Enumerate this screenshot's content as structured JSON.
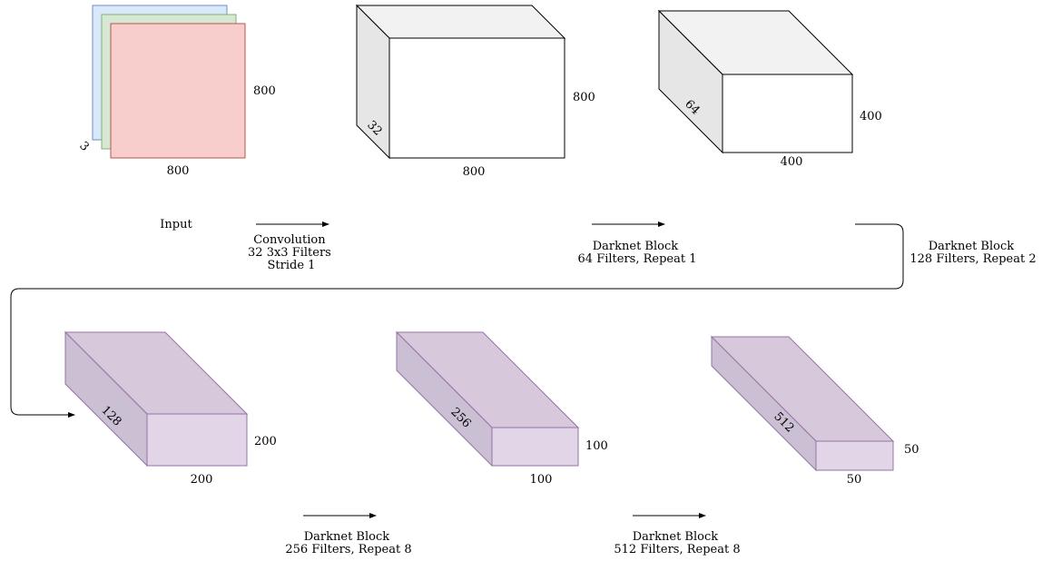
{
  "input": {
    "name": "Input",
    "width": "800",
    "height": "800",
    "channels": "3",
    "colors": {
      "back": "#dae8fc",
      "back_stroke": "#6c8ebf",
      "mid": "#d5e8d4",
      "mid_stroke": "#82b366",
      "front": "#f8cecc",
      "front_stroke": "#b85450"
    }
  },
  "conv1": {
    "width": "800",
    "height": "800",
    "depth": "32"
  },
  "block1": {
    "width": "400",
    "height": "400",
    "depth": "64"
  },
  "block2": {
    "width": "200",
    "height": "200",
    "depth": "128"
  },
  "block3": {
    "width": "100",
    "height": "100",
    "depth": "256"
  },
  "block4": {
    "width": "50",
    "height": "50",
    "depth": "512"
  },
  "transitions": [
    {
      "lines": [
        "Convolution",
        "32 3x3 Filters",
        "Stride 1"
      ]
    },
    {
      "lines": [
        "Darknet Block",
        "64 Filters, Repeat 1"
      ]
    },
    {
      "lines": [
        "Darknet Block",
        "128 Filters, Repeat 2"
      ]
    },
    {
      "lines": [
        "Darknet Block",
        "256 Filters, Repeat 8"
      ]
    },
    {
      "lines": [
        "Darknet Block",
        "512 Filters, Repeat 8"
      ]
    }
  ],
  "colors": {
    "white_front": "#ffffff",
    "white_top": "#f2f2f2",
    "white_side": "#e6e6e6",
    "white_stroke": "#000000",
    "purple_front": "#e1d5e7",
    "purple_top": "#d7c8dc",
    "purple_side": "#cbbfd3",
    "purple_stroke": "#9673a6"
  }
}
